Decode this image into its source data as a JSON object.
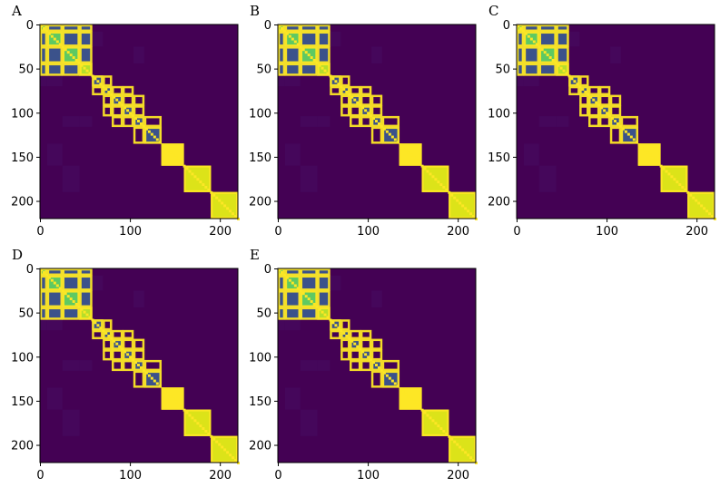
{
  "chart_data": [
    {
      "type": "heatmap",
      "panel": "A",
      "size": 220,
      "xticks": [
        0,
        100,
        200
      ],
      "yticks": [
        0,
        50,
        100,
        150,
        200
      ],
      "colormap": "viridis",
      "grid": false
    },
    {
      "type": "heatmap",
      "panel": "B",
      "size": 220,
      "xticks": [
        0,
        100,
        200
      ],
      "yticks": [
        0,
        50,
        100,
        150,
        200
      ],
      "colormap": "viridis",
      "grid": false
    },
    {
      "type": "heatmap",
      "panel": "C",
      "size": 220,
      "xticks": [
        0,
        100,
        200
      ],
      "yticks": [
        0,
        50,
        100,
        150,
        200
      ],
      "colormap": "viridis",
      "grid": false
    },
    {
      "type": "heatmap",
      "panel": "D",
      "size": 220,
      "xticks": [
        0,
        100,
        200
      ],
      "yticks": [
        0,
        50,
        100,
        150,
        200
      ],
      "colormap": "viridis",
      "grid": false
    },
    {
      "type": "heatmap",
      "panel": "E",
      "size": 220,
      "xticks": [
        0,
        100,
        200
      ],
      "yticks": [
        0,
        50,
        100,
        150,
        200
      ],
      "colormap": "viridis",
      "grid": false
    }
  ],
  "colors": {
    "background": "#440154",
    "low": "#46085c",
    "mid": "#3b528b",
    "green": "#5ec962",
    "lime": "#b5de2b",
    "yellow": "#fde725",
    "bright": "#dce319"
  }
}
